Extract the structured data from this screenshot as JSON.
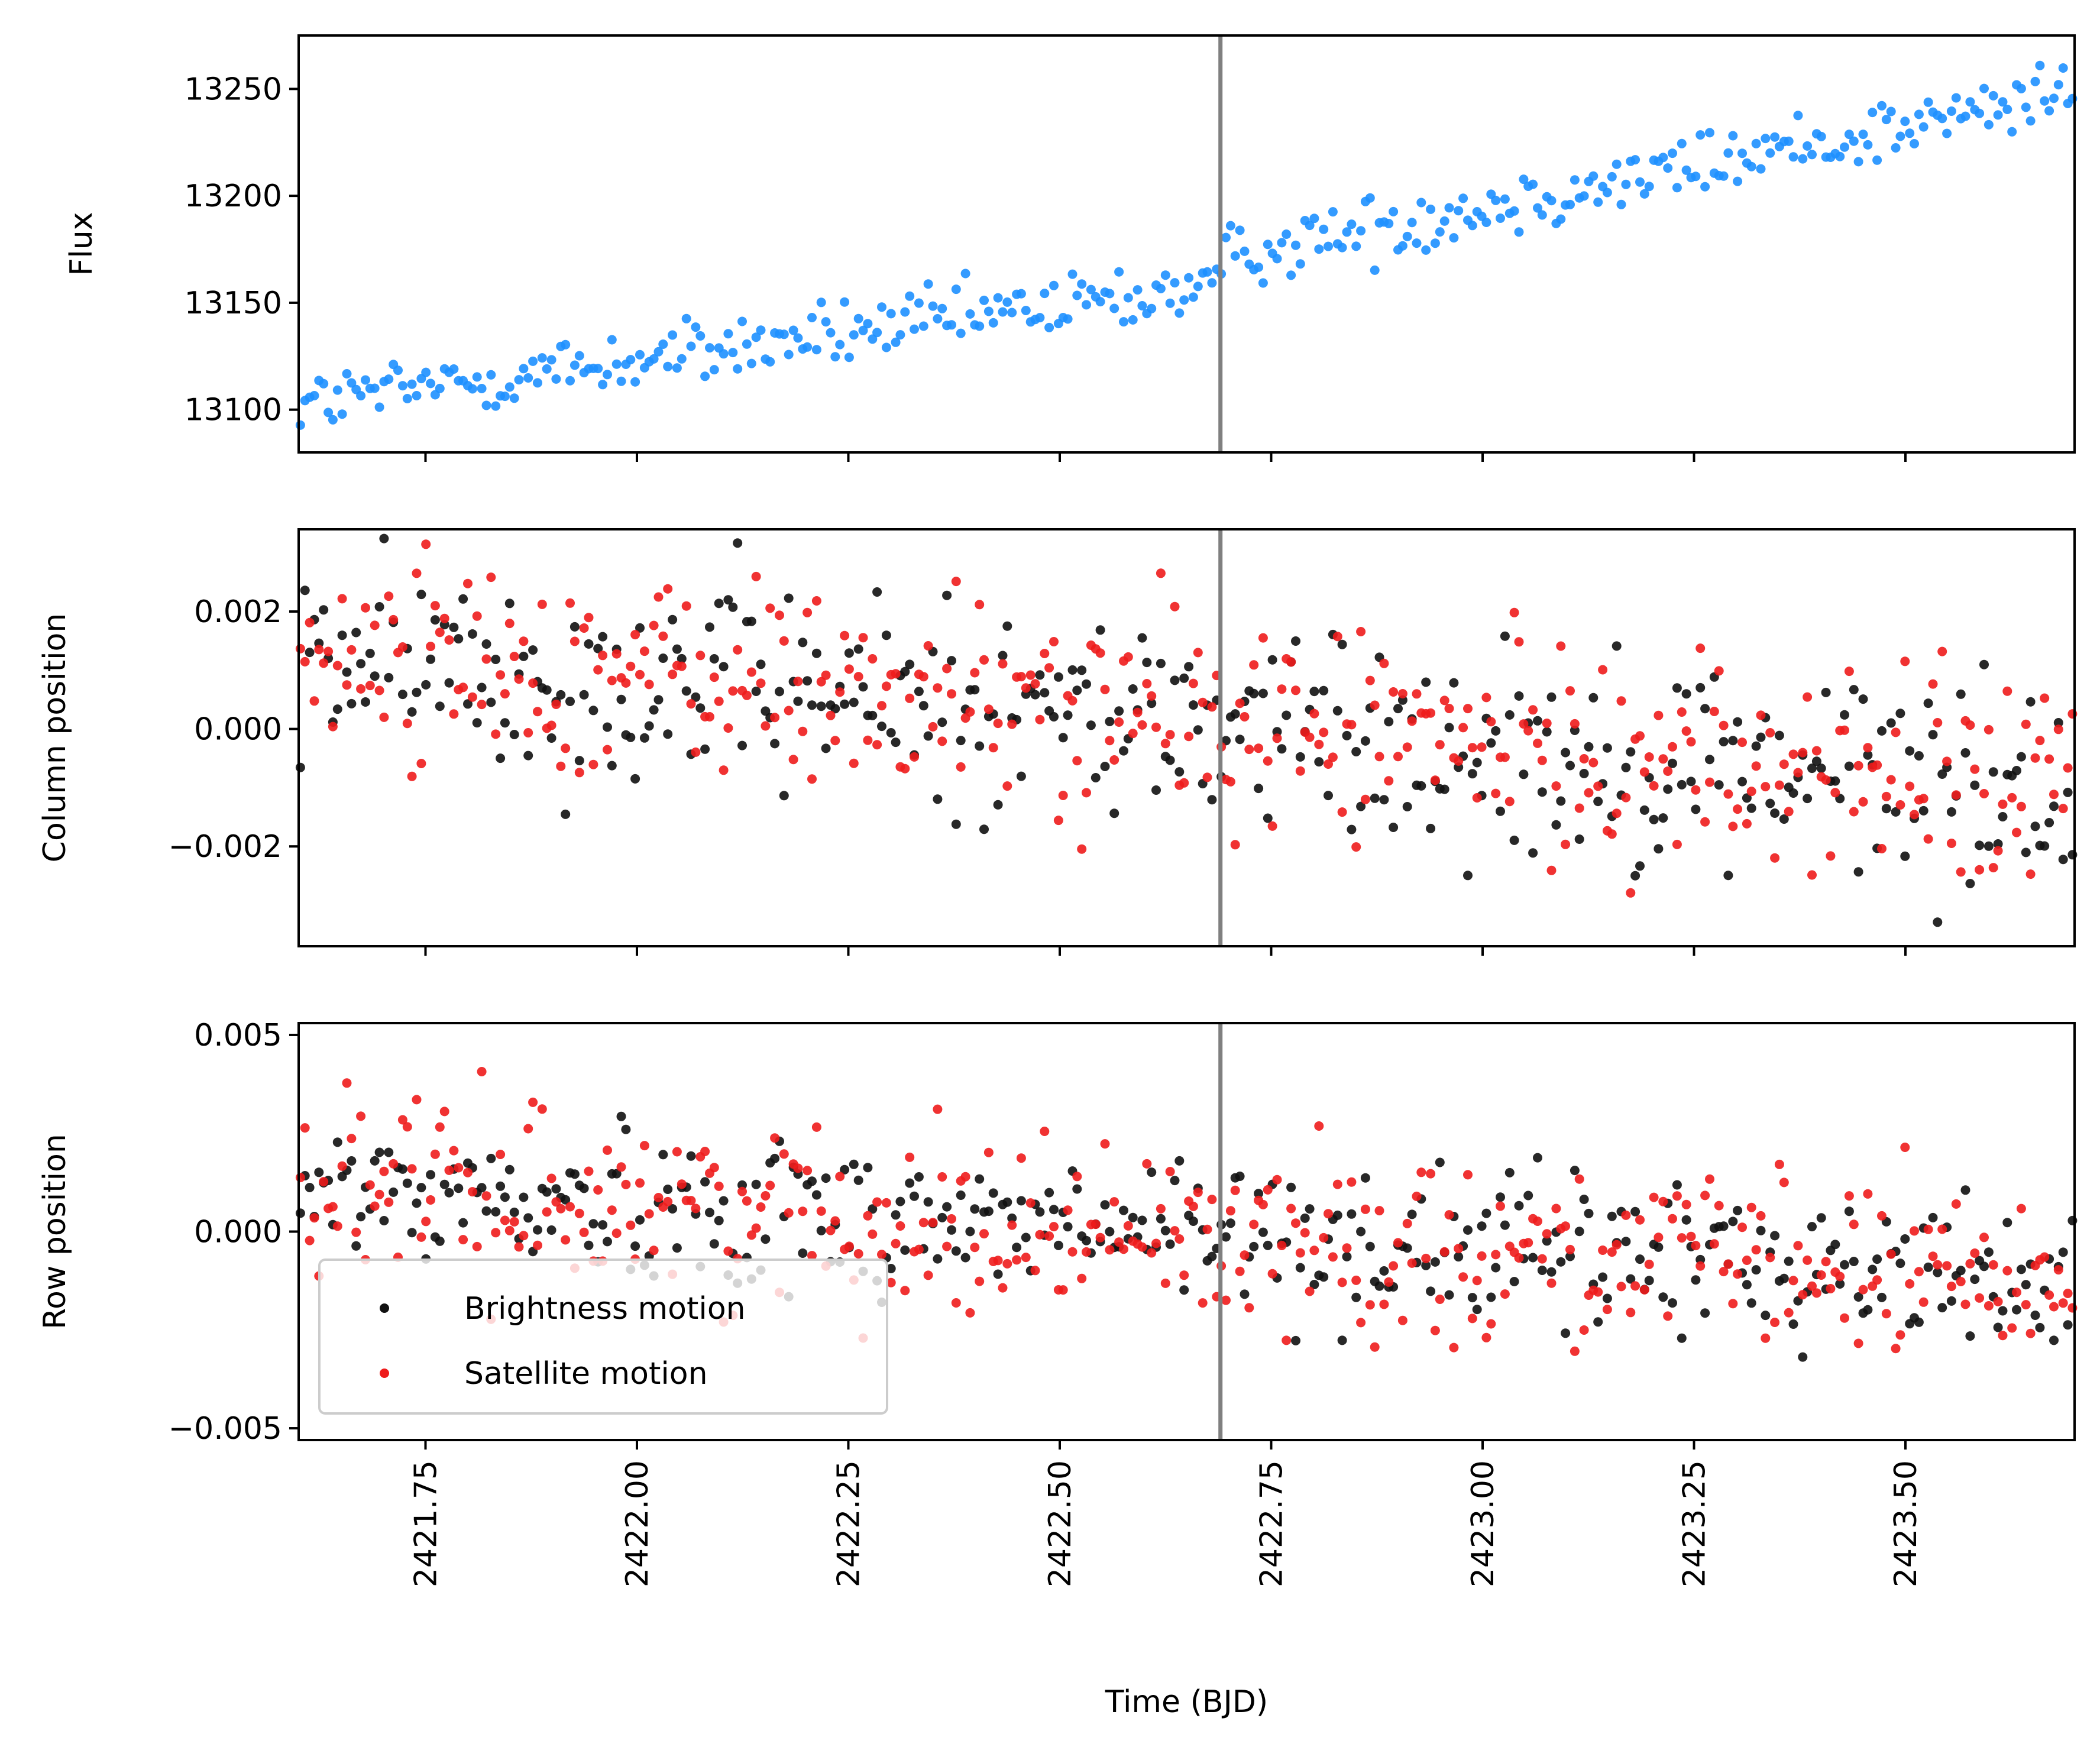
{
  "chart_data": [
    {
      "type": "scatter",
      "ylabel": "Flux",
      "xlim": [
        2421.6,
        2423.7
      ],
      "ylim": [
        13080,
        13275
      ],
      "yticks": [
        13100,
        13150,
        13200,
        13250
      ],
      "ytick_labels": [
        "13100",
        "13150",
        "13200",
        "13250"
      ],
      "vline_x": 2422.69,
      "series": [
        {
          "color": "#1e90ff",
          "trend": {
            "x": [
              2421.6,
              2422.69,
              2422.7,
              2423.7
            ],
            "y": [
              13103,
              13158,
              13172,
              13248
            ]
          },
          "noise": 11,
          "step": 0.0055
        }
      ]
    },
    {
      "type": "scatter",
      "ylabel": "Column position",
      "xlim": [
        2421.6,
        2423.7
      ],
      "ylim": [
        -0.0037,
        0.0034
      ],
      "yticks": [
        -0.002,
        0.0,
        0.002
      ],
      "ytick_labels": [
        "−0.002",
        "0.000",
        "0.002"
      ],
      "vline_x": 2422.69,
      "series": [
        {
          "name": "Brightness motion",
          "color": "#111111",
          "trend": {
            "x": [
              2421.6,
              2423.7
            ],
            "y": [
              0.0013,
              -0.0011
            ]
          },
          "noise": 0.0013,
          "step": 0.0055
        },
        {
          "name": "Satellite motion",
          "color": "#ee1c1c",
          "trend": {
            "x": [
              2421.6,
              2423.7
            ],
            "y": [
              0.0014,
              -0.0011
            ]
          },
          "noise": 0.0013,
          "step": 0.0055
        }
      ]
    },
    {
      "type": "scatter",
      "ylabel": "Row position",
      "xlabel": "Time (BJD)",
      "xlim": [
        2421.6,
        2423.7
      ],
      "ylim": [
        -0.0053,
        0.0053
      ],
      "yticks": [
        -0.005,
        0.0,
        0.005
      ],
      "ytick_labels": [
        "−0.005",
        "0.000",
        "0.005"
      ],
      "xticks": [
        2421.75,
        2422.0,
        2422.25,
        2422.5,
        2422.75,
        2423.0,
        2423.25,
        2423.5
      ],
      "xtick_labels": [
        "2421.75",
        "2422.00",
        "2422.25",
        "2422.50",
        "2422.75",
        "2423.00",
        "2423.25",
        "2423.50"
      ],
      "vline_x": 2422.69,
      "legend": {
        "placement": "lower-left",
        "entries": [
          "Brightness motion",
          "Satellite motion"
        ]
      },
      "series": [
        {
          "name": "Brightness motion",
          "color": "#111111",
          "trend": {
            "x": [
              2421.6,
              2423.7
            ],
            "y": [
              0.0011,
              -0.0012
            ]
          },
          "noise": 0.0014,
          "step": 0.0055
        },
        {
          "name": "Satellite motion",
          "color": "#ee1c1c",
          "trend": {
            "x": [
              2421.6,
              2423.7
            ],
            "y": [
              0.0012,
              -0.0013
            ]
          },
          "noise": 0.0016,
          "step": 0.0055
        }
      ]
    }
  ]
}
